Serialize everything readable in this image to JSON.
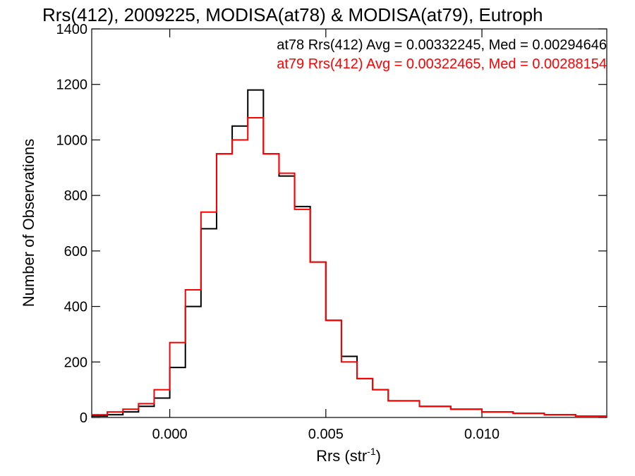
{
  "chart_data": {
    "type": "histogram",
    "title": "Rrs(412), 2009225, MODISA(at78) & MODISA(at79), Eutroph",
    "xlabel_main": "Rrs (str",
    "xlabel_sup": "-1",
    "xlabel_close": ")",
    "ylabel": "Number of Observations",
    "xlim": [
      -0.0025,
      0.014
    ],
    "ylim": [
      0,
      1400
    ],
    "x_ticks": [
      0.0,
      0.005,
      0.01
    ],
    "x_tick_labels": [
      "0.000",
      "0.005",
      "0.010"
    ],
    "y_ticks": [
      0,
      200,
      400,
      600,
      800,
      1000,
      1200,
      1400
    ],
    "y_tick_labels": [
      "0",
      "200",
      "400",
      "600",
      "800",
      "1000",
      "1200",
      "1400"
    ],
    "stats": [
      {
        "text": "at78 Rrs(412) Avg = 0.00332245, Med = 0.00294646",
        "color": "#000000"
      },
      {
        "text": "at79 Rrs(412) Avg = 0.00322465, Med = 0.00288154",
        "color": "#ff0000"
      }
    ],
    "series": [
      {
        "name": "at78",
        "color": "#000000",
        "x": [
          -0.0025,
          -0.002,
          -0.0015,
          -0.001,
          -0.0005,
          0.0,
          0.0005,
          0.001,
          0.0015,
          0.002,
          0.0025,
          0.003,
          0.0035,
          0.004,
          0.0045,
          0.005,
          0.0055,
          0.006,
          0.0065,
          0.007,
          0.008,
          0.009,
          0.01,
          0.011,
          0.012,
          0.013,
          0.014
        ],
        "y": [
          5,
          10,
          20,
          40,
          70,
          180,
          400,
          680,
          950,
          1050,
          1180,
          950,
          870,
          760,
          560,
          350,
          220,
          140,
          100,
          60,
          40,
          30,
          20,
          15,
          10,
          5,
          5
        ]
      },
      {
        "name": "at79",
        "color": "#ff0000",
        "x": [
          -0.0025,
          -0.002,
          -0.0015,
          -0.001,
          -0.0005,
          0.0,
          0.0005,
          0.001,
          0.0015,
          0.002,
          0.0025,
          0.003,
          0.0035,
          0.004,
          0.0045,
          0.005,
          0.0055,
          0.006,
          0.0065,
          0.007,
          0.008,
          0.009,
          0.01,
          0.011,
          0.012,
          0.013,
          0.014
        ],
        "y": [
          10,
          20,
          30,
          50,
          100,
          270,
          460,
          740,
          950,
          1000,
          1080,
          950,
          880,
          750,
          560,
          350,
          200,
          140,
          100,
          60,
          40,
          30,
          20,
          15,
          10,
          5,
          5
        ]
      }
    ],
    "grid": false,
    "legend": "top-right text"
  }
}
